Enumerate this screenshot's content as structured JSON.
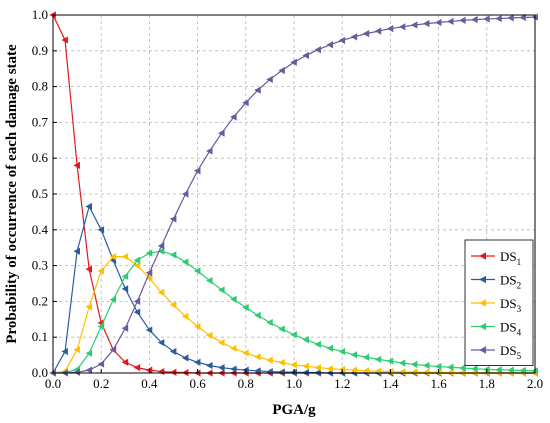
{
  "chart_data": {
    "type": "line",
    "xlabel": "PGA/g",
    "ylabel": "Probability of occurrence of each damage state",
    "xlim": [
      0.0,
      2.0
    ],
    "ylim": [
      0.0,
      1.0
    ],
    "x_ticks": [
      "0.0",
      "0.2",
      "0.4",
      "0.6",
      "0.8",
      "1.0",
      "1.2",
      "1.4",
      "1.6",
      "1.8",
      "2.0"
    ],
    "y_ticks": [
      "0.0",
      "0.1",
      "0.2",
      "0.3",
      "0.4",
      "0.5",
      "0.6",
      "0.7",
      "0.8",
      "0.9",
      "1.0"
    ],
    "grid": true,
    "legend_position": "bottom-right",
    "marker": "left-pointing triangle",
    "x": [
      0.0,
      0.05,
      0.1,
      0.15,
      0.2,
      0.25,
      0.3,
      0.35,
      0.4,
      0.45,
      0.5,
      0.55,
      0.6,
      0.65,
      0.7,
      0.75,
      0.8,
      0.85,
      0.9,
      0.95,
      1.0,
      1.05,
      1.1,
      1.15,
      1.2,
      1.25,
      1.3,
      1.35,
      1.4,
      1.45,
      1.5,
      1.55,
      1.6,
      1.65,
      1.7,
      1.75,
      1.8,
      1.85,
      1.9,
      1.95,
      2.0
    ],
    "series": [
      {
        "name": "DS",
        "subscript": "1",
        "color": "#e31a1c",
        "values": [
          1.0,
          0.93,
          0.58,
          0.29,
          0.14,
          0.065,
          0.03,
          0.015,
          0.008,
          0.004,
          0.002,
          0.001,
          0.0,
          0.0,
          0.0,
          0.0,
          0.0,
          0.0,
          0.0,
          0.0,
          0.0,
          0.0,
          0.0,
          0.0,
          0.0,
          0.0,
          0.0,
          0.0,
          0.0,
          0.0,
          0.0,
          0.0,
          0.0,
          0.0,
          0.0,
          0.0,
          0.0,
          0.0,
          0.0,
          0.0,
          0.0
        ]
      },
      {
        "name": "DS",
        "subscript": "2",
        "color": "#2a5ea0",
        "values": [
          0.0,
          0.06,
          0.34,
          0.465,
          0.4,
          0.315,
          0.235,
          0.17,
          0.12,
          0.085,
          0.06,
          0.042,
          0.03,
          0.021,
          0.015,
          0.011,
          0.008,
          0.006,
          0.004,
          0.003,
          0.002,
          0.0015,
          0.001,
          0.0,
          0.0,
          0.0,
          0.0,
          0.0,
          0.0,
          0.0,
          0.0,
          0.0,
          0.0,
          0.0,
          0.0,
          0.0,
          0.0,
          0.0,
          0.0,
          0.0,
          0.0
        ]
      },
      {
        "name": "DS",
        "subscript": "3",
        "color": "#ffc000",
        "values": [
          0.0,
          0.005,
          0.065,
          0.185,
          0.285,
          0.325,
          0.325,
          0.3,
          0.265,
          0.225,
          0.19,
          0.158,
          0.13,
          0.105,
          0.085,
          0.069,
          0.056,
          0.045,
          0.036,
          0.029,
          0.023,
          0.019,
          0.015,
          0.012,
          0.01,
          0.008,
          0.006,
          0.005,
          0.004,
          0.003,
          0.003,
          0.002,
          0.002,
          0.001,
          0.001,
          0.001,
          0.001,
          0.0,
          0.0,
          0.0,
          0.0
        ]
      },
      {
        "name": "DS",
        "subscript": "4",
        "color": "#2ecc71",
        "values": [
          0.0,
          0.001,
          0.01,
          0.055,
          0.13,
          0.205,
          0.27,
          0.315,
          0.335,
          0.34,
          0.33,
          0.31,
          0.285,
          0.258,
          0.232,
          0.206,
          0.183,
          0.161,
          0.141,
          0.123,
          0.107,
          0.093,
          0.08,
          0.069,
          0.06,
          0.051,
          0.044,
          0.038,
          0.033,
          0.028,
          0.024,
          0.021,
          0.018,
          0.016,
          0.014,
          0.012,
          0.01,
          0.009,
          0.008,
          0.007,
          0.006
        ]
      },
      {
        "name": "DS",
        "subscript": "5",
        "color": "#6a5a9e",
        "values": [
          0.0,
          0.0,
          0.002,
          0.008,
          0.025,
          0.065,
          0.125,
          0.2,
          0.28,
          0.355,
          0.43,
          0.5,
          0.565,
          0.62,
          0.67,
          0.715,
          0.755,
          0.79,
          0.82,
          0.845,
          0.868,
          0.887,
          0.903,
          0.917,
          0.929,
          0.939,
          0.948,
          0.955,
          0.962,
          0.967,
          0.972,
          0.976,
          0.979,
          0.982,
          0.985,
          0.987,
          0.989,
          0.99,
          0.992,
          0.993,
          0.994
        ]
      }
    ]
  }
}
